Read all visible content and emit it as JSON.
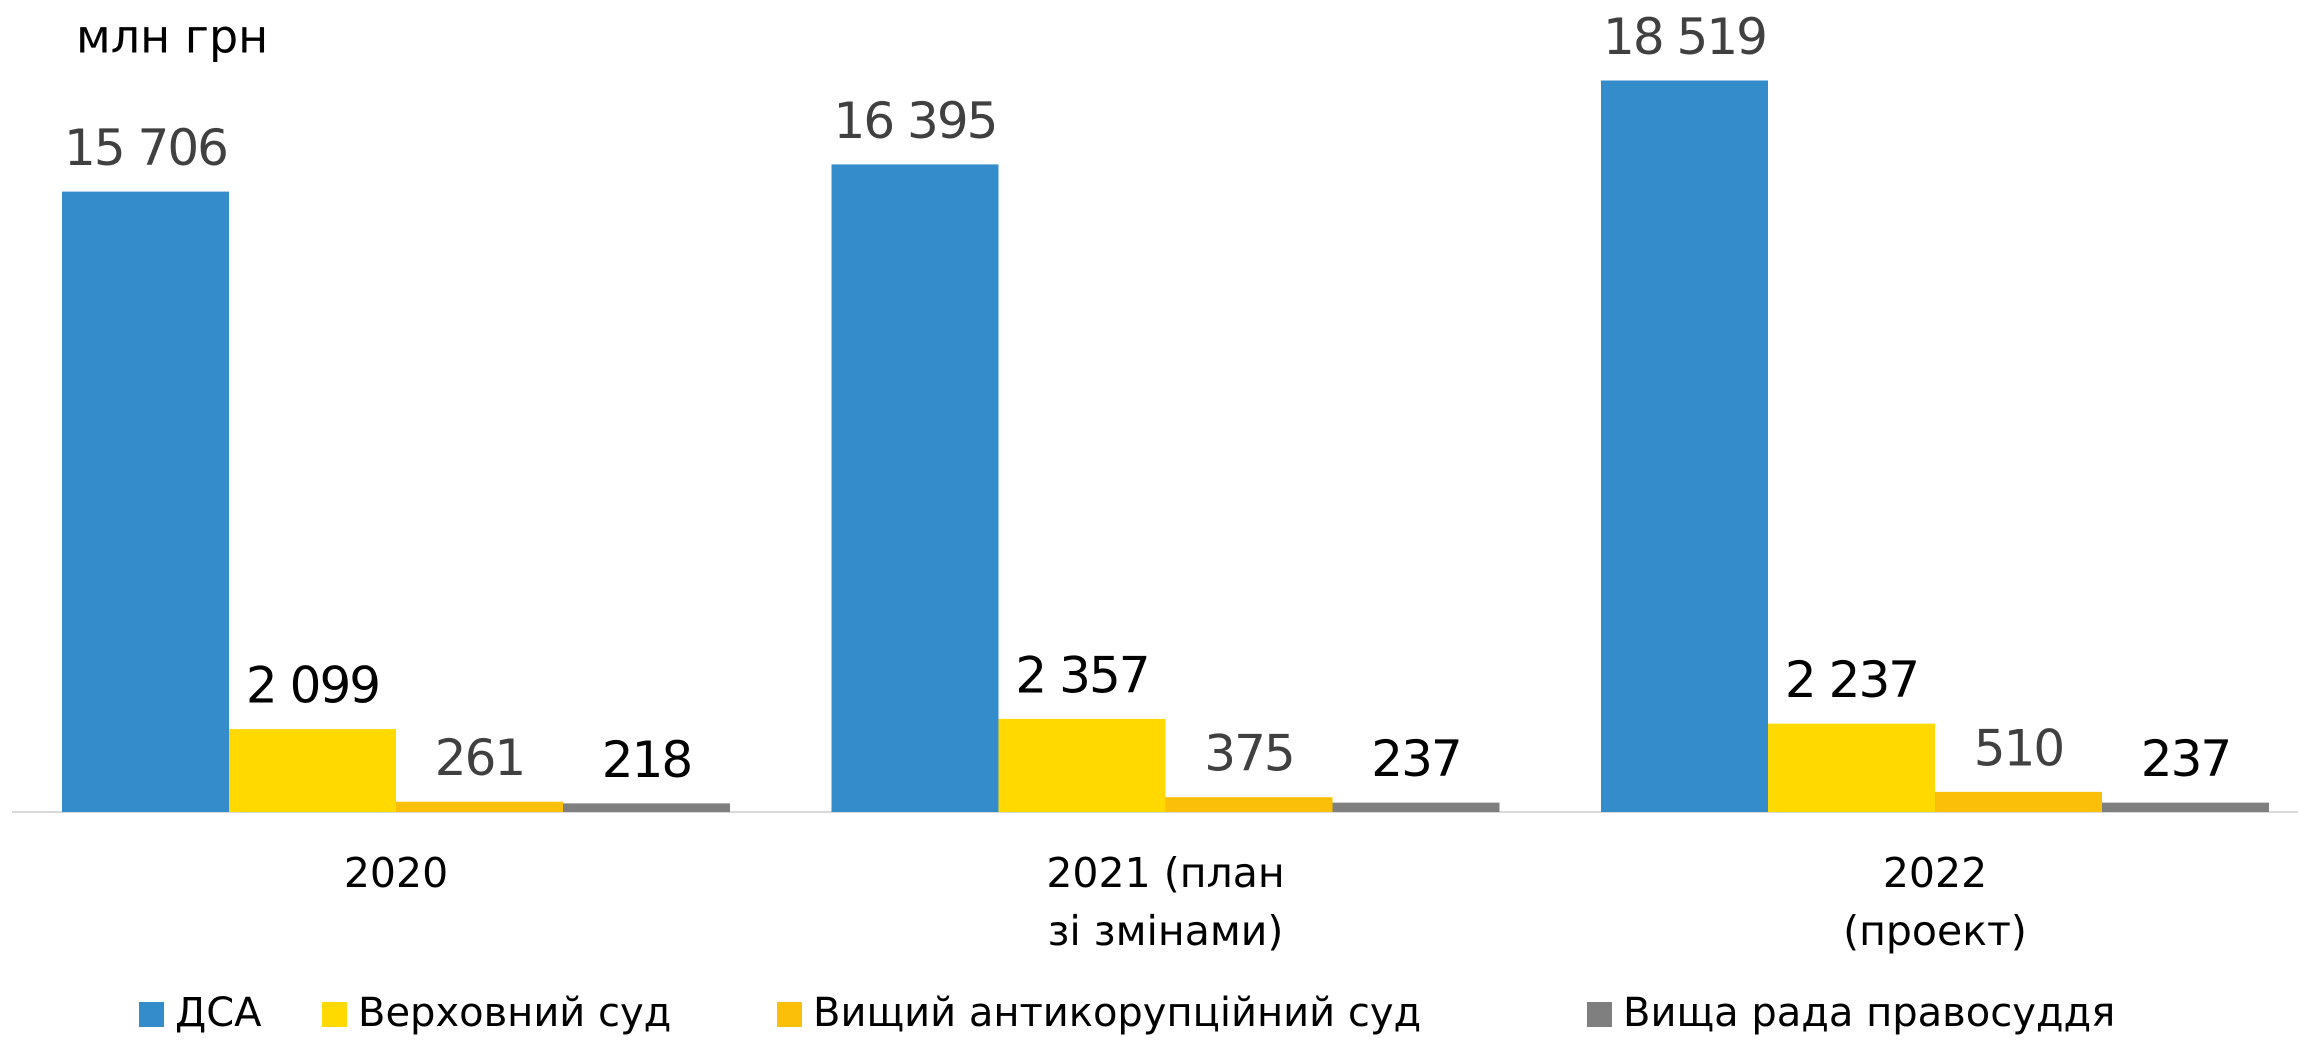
{
  "chart_data": {
    "type": "bar",
    "title": "млн грн",
    "categories": [
      "2020",
      "2021 (план\nзі змінами)",
      "2022\n(проект)"
    ],
    "series": [
      {
        "name": "ДСА",
        "color": "#358ccb",
        "label_color": "#404040",
        "values": [
          15706,
          16395,
          18519
        ],
        "value_labels": [
          "15 706",
          "16 395",
          "18 519"
        ]
      },
      {
        "name": "Верховний суд",
        "color": "#ffd900",
        "label_color": "#000000",
        "values": [
          2099,
          2357,
          2237
        ],
        "value_labels": [
          "2 099",
          "2 357",
          "2 237"
        ]
      },
      {
        "name": "Вищий антикорупційний суд",
        "color": "#fbbf09",
        "label_color": "#404040",
        "values": [
          261,
          375,
          510
        ]
      },
      {
        "name": "Вища рада правосуддя",
        "color": "#7f7f7f",
        "label_color": "#000000",
        "values": [
          218,
          237,
          237
        ]
      }
    ],
    "ylim": [
      0,
      20000
    ],
    "legend": "bottom"
  }
}
